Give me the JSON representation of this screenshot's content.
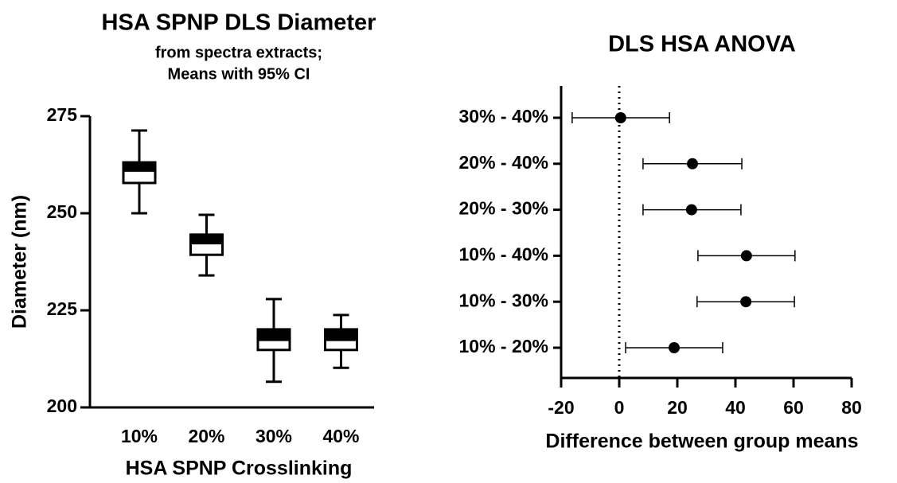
{
  "chart_data": [
    {
      "type": "box",
      "title": "HSA SPNP DLS Diameter",
      "subtitle": [
        "from spectra extracts;",
        "Means with 95% CI"
      ],
      "x_label": "HSA SPNP Crosslinking",
      "y_label": "Diameter (nm)",
      "categories": [
        "10%",
        "20%",
        "30%",
        "40%"
      ],
      "min": [
        250,
        234,
        206.6,
        210.2
      ],
      "q1": [
        257.8,
        239.3,
        214.8,
        214.8
      ],
      "median": [
        261,
        242.3,
        217.4,
        217.4
      ],
      "q3": [
        263.1,
        244.5,
        220.1,
        220.1
      ],
      "max": [
        271.3,
        249.6,
        227.9,
        223.8
      ],
      "ylim": [
        200,
        275
      ],
      "yticks": [
        200,
        225,
        250,
        275
      ],
      "color": "#000000"
    },
    {
      "type": "forest",
      "title": "DLS HSA ANOVA",
      "x_label": "Difference between group means",
      "categories": [
        "30% - 40%",
        "20% - 40%",
        "20% - 30%",
        "10% - 40%",
        "10% - 30%",
        "10% - 20%"
      ],
      "values": [
        0.5,
        25.2,
        24.9,
        43.8,
        43.6,
        18.9
      ],
      "lower": [
        -16.2,
        8.2,
        8.2,
        27.1,
        26.8,
        2.2
      ],
      "upper": [
        17.3,
        42.2,
        41.9,
        60.5,
        60.3,
        35.6
      ],
      "xlim": [
        -20,
        80
      ],
      "xticks": [
        -20,
        0,
        20,
        40,
        60,
        80
      ],
      "refline": 0,
      "color": "#000000"
    }
  ]
}
